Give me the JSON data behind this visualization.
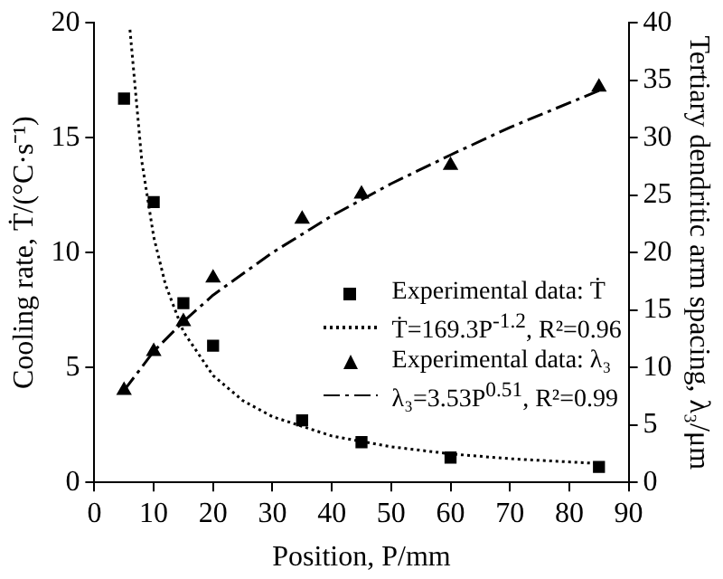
{
  "chart_data": {
    "type": "scatter",
    "xlabel": "Position, P/mm",
    "ylabel": "Cooling rate, Ṫ/(°C·s⁻¹)",
    "y2label": "Tertiary dendritic arm spacing, λ₃/μm",
    "xlim": [
      0,
      90
    ],
    "xticks": [
      0,
      10,
      20,
      30,
      40,
      50,
      60,
      70,
      80,
      90
    ],
    "ylim": [
      0,
      20
    ],
    "yticks": [
      0,
      5,
      10,
      15,
      20
    ],
    "y2lim": [
      0,
      40
    ],
    "y2ticks": [
      0,
      5,
      10,
      15,
      20,
      25,
      30,
      35,
      40
    ],
    "grid": false,
    "legend": "right",
    "series": [
      {
        "name": "Experimental data: Ṫ",
        "type": "scatter",
        "marker": "square",
        "color": "#000000",
        "x": [
          5,
          10,
          15,
          20,
          35,
          45,
          60,
          85
        ],
        "values": [
          16.7,
          12.2,
          7.8,
          5.95,
          2.7,
          1.75,
          1.08,
          0.67
        ]
      },
      {
        "name": "Ṫ=169.3P$^{-1.2}$, R²=0.96",
        "type": "line",
        "marker": "none",
        "line_style": "dotted",
        "color": "#000000",
        "x": [
          6,
          8,
          10,
          12,
          15,
          20,
          25,
          30,
          40,
          50,
          60,
          70,
          85
        ],
        "values": [
          19.7,
          13.96,
          10.68,
          8.59,
          6.56,
          4.65,
          3.56,
          2.86,
          2.02,
          1.55,
          1.24,
          1.03,
          0.82
        ]
      },
      {
        "name": "Experimental data: λ₃",
        "type": "scatter",
        "marker": "triangle",
        "axis": "y2",
        "color": "#000000",
        "x": [
          5,
          10,
          15,
          20,
          35,
          45,
          60,
          85
        ],
        "values": [
          8.0,
          11.4,
          14.0,
          17.8,
          22.9,
          25.1,
          27.6,
          34.4
        ]
      },
      {
        "name": "λ₃=3.53P$^{0.51}$, R²=0.99",
        "type": "line",
        "marker": "none",
        "line_style": "dashed",
        "axis": "y2",
        "color": "#000000",
        "x": [
          5,
          10,
          15,
          20,
          30,
          40,
          50,
          60,
          70,
          85
        ],
        "values": [
          8.0,
          11.4,
          14.0,
          16.3,
          20.0,
          23.2,
          26.0,
          28.5,
          30.9,
          34.1
        ]
      }
    ]
  }
}
